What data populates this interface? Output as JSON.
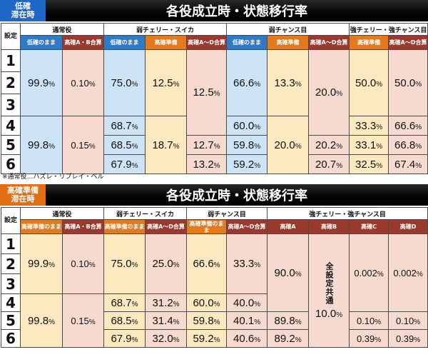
{
  "section1": {
    "tag": [
      "低確",
      "滞在時"
    ],
    "title": "各役成立時・状態移行率",
    "setting_label": "設定",
    "groups": [
      "通常役",
      "弱チェリー・スイカ",
      "弱チャンス目",
      "強チェリー・強チャンス目"
    ],
    "sub": [
      "低確のまま",
      "高確A・B合算",
      "低確のまま",
      "高確準備",
      "高確A～D合算",
      "低確のまま",
      "高確準備",
      "高確A～D合算",
      "高確準備",
      "高確A～D合算"
    ],
    "settings": [
      "1",
      "2",
      "3",
      "4",
      "5",
      "6"
    ],
    "normal_stay": [
      "99.9",
      "99.8"
    ],
    "normal_ab": [
      "0.10",
      "0.15"
    ],
    "wc_stay": [
      "75.0",
      "68.7",
      "68.5",
      "67.9"
    ],
    "wc_prep": [
      "12.5",
      "18.7"
    ],
    "wc_ad": [
      "12.5",
      "12.7",
      "13.2"
    ],
    "wch_stay": [
      "66.6",
      "60.0",
      "59.8",
      "59.2"
    ],
    "wch_prep": [
      "13.3",
      "20.0"
    ],
    "wch_ad": [
      "20.0",
      "20.2",
      "20.7"
    ],
    "sc_prep": [
      "50.0",
      "33.3",
      "33.1",
      "32.5"
    ],
    "sc_ad": [
      "50.0",
      "66.6",
      "66.8",
      "67.4"
    ],
    "pct": "%"
  },
  "note": "※通常役…ハズレ・リプレイ・ベル",
  "section2": {
    "tag": [
      "高確準備",
      "滞在時"
    ],
    "title": "各役成立時・状態移行率",
    "setting_label": "設定",
    "groups": [
      "通常役",
      "弱チェリー・スイカ",
      "弱チャンス目",
      "強チェリー・強チャンス目"
    ],
    "sub": [
      "高確準備のまま",
      "高確A・B合算",
      "高確準備のまま",
      "高確A～D合算",
      "高確準備のまま",
      "高確A～D合算",
      "高確A",
      "高確B",
      "高確C",
      "高確D"
    ],
    "settings": [
      "1",
      "2",
      "3",
      "4",
      "5",
      "6"
    ],
    "normal_stay": [
      "99.9",
      "99.8"
    ],
    "normal_ab": [
      "0.10",
      "0.15"
    ],
    "wc_stay": [
      "75.0",
      "68.7",
      "68.5",
      "67.9"
    ],
    "wc_ad": [
      "25.0",
      "31.2",
      "31.4",
      "32.0"
    ],
    "wch_stay": [
      "66.6",
      "60.0",
      "59.8",
      "59.2"
    ],
    "wch_ad": [
      "33.3",
      "40.0",
      "40.1",
      "40.6"
    ],
    "hk_a": [
      "90.0",
      "89.8",
      "89.2"
    ],
    "hk_b_label": "全設定共通",
    "hk_b": "10.0",
    "hk_c": [
      "0.002",
      "0.10",
      "0.39"
    ],
    "hk_d": [
      "0.002",
      "0.10",
      "0.39"
    ],
    "pct": "%"
  },
  "colors": {
    "stay_blue": "#cde4f7",
    "rate_pink": "#f6d9cf",
    "prep_yellow": "#fce9bf",
    "header_blue": "#2f79c9",
    "header_maroon": "#9a3a2e",
    "header_orange": "#e37a1e"
  }
}
